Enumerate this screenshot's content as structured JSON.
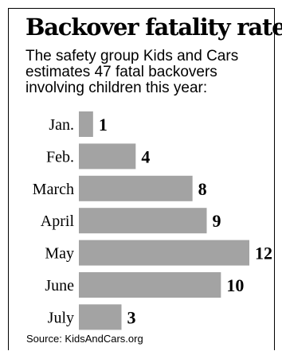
{
  "chart_data": {
    "type": "bar",
    "orientation": "horizontal",
    "title": "Backover fatality rate",
    "subtitle": "The safety group Kids and Cars estimates 47 fatal backovers involving children this year:",
    "categories": [
      "Jan.",
      "Feb.",
      "March",
      "April",
      "May",
      "June",
      "July"
    ],
    "values": [
      1,
      4,
      8,
      9,
      12,
      10,
      3
    ],
    "xlim": [
      0,
      12
    ],
    "grid": false,
    "bar_color": "#a3a3a3"
  },
  "source": "Source: KidsAndCars.org"
}
